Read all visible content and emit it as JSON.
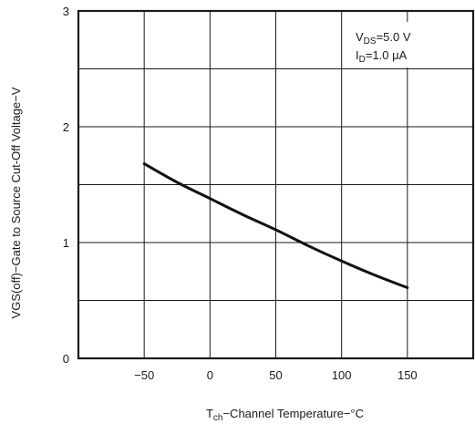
{
  "chart_data": {
    "type": "line",
    "xlabel": "Tch−Channel Temperature−°C",
    "xlabel_parts": {
      "symbol": "T",
      "subscript": "ch",
      "text": "−Channel Temperature−°C"
    },
    "ylabel": "VGS(off)−Gate to Source Cut-Off Voltage−V",
    "xlim": [
      -100,
      200
    ],
    "ylim": [
      0,
      3
    ],
    "x_ticks": [
      -50,
      0,
      50,
      100,
      150
    ],
    "x_tick_labels": [
      "−50",
      "0",
      "50",
      "100",
      "150"
    ],
    "y_ticks": [
      0,
      1,
      2,
      3
    ],
    "y_tick_labels": [
      "0",
      "1",
      "2",
      "3"
    ],
    "x_grid_step": 50,
    "y_grid_step": 0.5,
    "grid": true,
    "conditions": [
      {
        "symbol": "V",
        "subscript": "DS",
        "value": "=5.0 V"
      },
      {
        "symbol": "I",
        "subscript": "D",
        "value": "=1.0 μA"
      }
    ],
    "conditions_placement": "top-right",
    "series": [
      {
        "x": [
          -50,
          -25,
          0,
          25,
          50,
          75,
          100,
          125,
          150
        ],
        "y": [
          1.68,
          1.52,
          1.38,
          1.24,
          1.11,
          0.97,
          0.84,
          0.72,
          0.61
        ]
      }
    ]
  }
}
